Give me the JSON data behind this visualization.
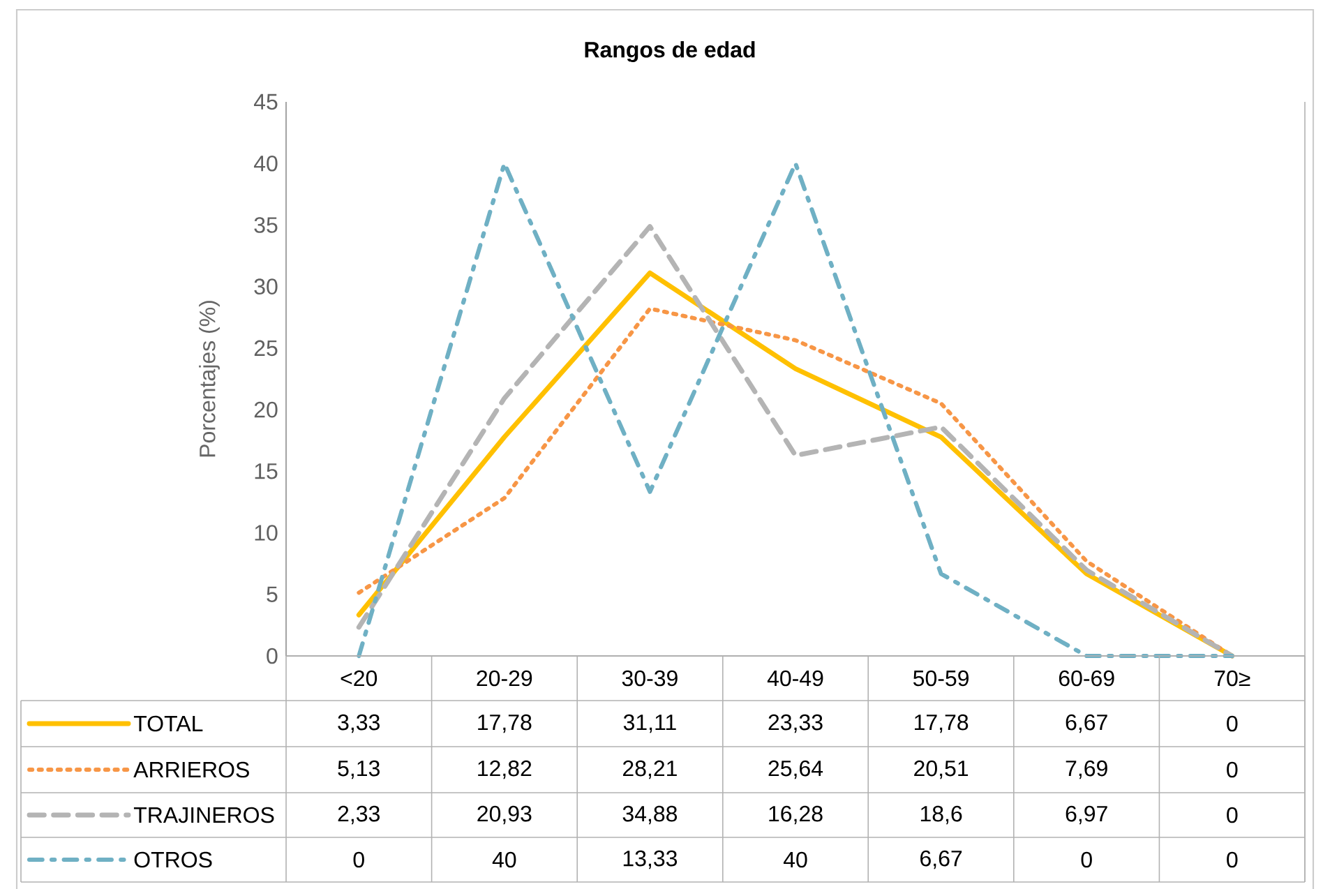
{
  "chart_data": {
    "type": "line",
    "title": "Rangos de edad",
    "ylabel": "Porcentajes (%)",
    "categories": [
      "<20",
      "20-29",
      "30-39",
      "40-49",
      "50-59",
      "60-69",
      "70≥"
    ],
    "ylim": [
      0,
      45
    ],
    "yticks": [
      0,
      5,
      10,
      15,
      20,
      25,
      30,
      35,
      40,
      45
    ],
    "grid": false,
    "legend": "bottom",
    "marker": "none",
    "series": [
      {
        "name": "TOTAL",
        "color": "#ffc000",
        "line_style": "solid",
        "values": [
          3.33,
          17.78,
          31.11,
          23.33,
          17.78,
          6.67,
          0
        ],
        "value_labels": [
          "3,33",
          "17,78",
          "31,11",
          "23,33",
          "17,78",
          "6,67",
          "0"
        ]
      },
      {
        "name": "ARRIEROS",
        "color": "#f79646",
        "line_style": "dotted",
        "values": [
          5.13,
          12.82,
          28.21,
          25.64,
          20.51,
          7.69,
          0
        ],
        "value_labels": [
          "5,13",
          "12,82",
          "28,21",
          "25,64",
          "20,51",
          "7,69",
          "0"
        ]
      },
      {
        "name": "TRAJINEROS",
        "color": "#b4b4b4",
        "line_style": "dashed",
        "values": [
          2.33,
          20.93,
          34.88,
          16.28,
          18.6,
          6.97,
          0
        ],
        "value_labels": [
          "2,33",
          "20,93",
          "34,88",
          "16,28",
          "18,6",
          "6,97",
          "0"
        ]
      },
      {
        "name": "OTROS",
        "color": "#6fb0c4",
        "line_style": "dashdot",
        "values": [
          0,
          40,
          13.33,
          40,
          6.67,
          0,
          0
        ],
        "value_labels": [
          "0",
          "40",
          "13,33",
          "40",
          "6,67",
          "0",
          "0"
        ]
      }
    ]
  }
}
